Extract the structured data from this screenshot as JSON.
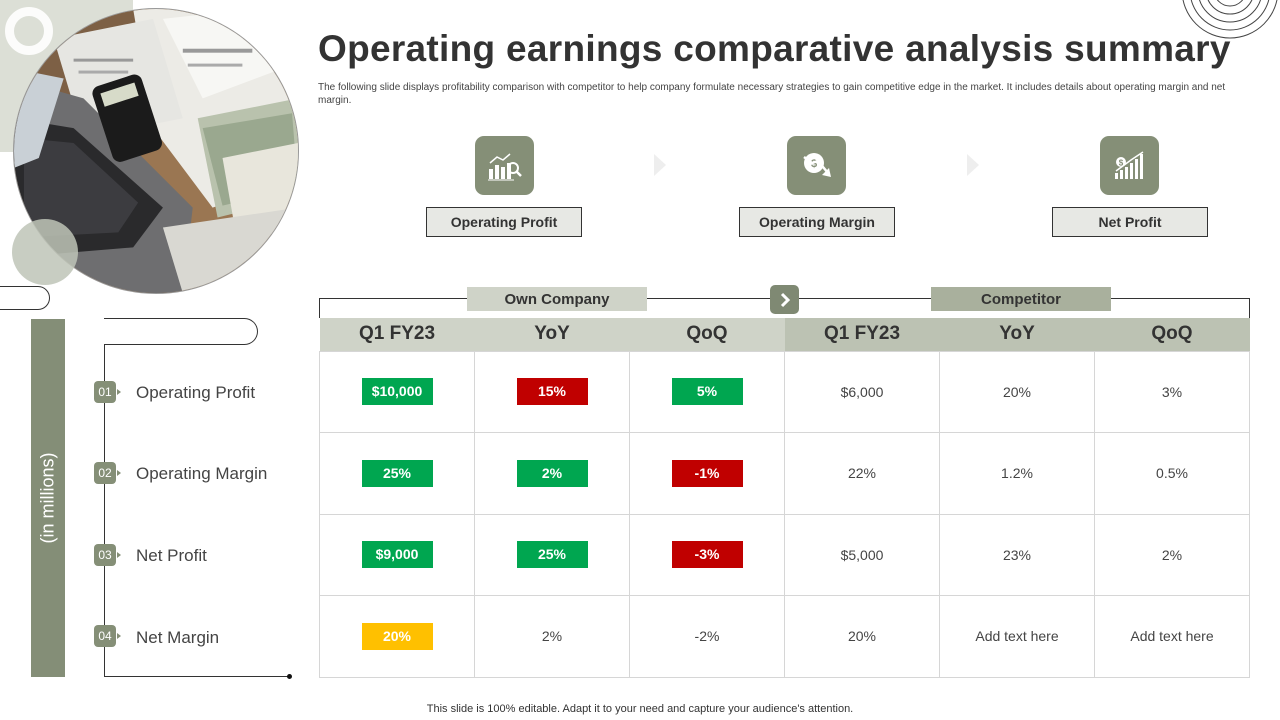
{
  "slide": {
    "title": "Operating earnings comparative analysis summary",
    "subtitle": "The following slide displays profitability comparison with competitor to help company formulate necessary strategies to gain competitive edge in the market. It includes details about operating margin and net margin.",
    "footer": "This slide is 100% editable.  Adapt it to your need and capture your audience's attention."
  },
  "categories": [
    {
      "label": "Operating Profit",
      "icon": "bar-chart-magnifier-icon"
    },
    {
      "label": "Operating Margin",
      "icon": "dollar-down-arrow-icon"
    },
    {
      "label": "Net Profit",
      "icon": "dollar-growth-bars-icon"
    }
  ],
  "side": {
    "unit_label": "(in millions)",
    "rows": [
      {
        "num": "01",
        "label": "Operating Profit"
      },
      {
        "num": "02",
        "label": "Operating Margin"
      },
      {
        "num": "03",
        "label": "Net Profit"
      },
      {
        "num": "04",
        "label": "Net Margin"
      }
    ]
  },
  "table": {
    "groups": {
      "own": "Own Company",
      "competitor": "Competitor"
    },
    "headers": [
      "Q1 FY23",
      "YoY",
      "QoQ",
      "Q1 FY23",
      "YoY",
      "QoQ"
    ],
    "rows": [
      [
        {
          "text": "$10,000",
          "color": "#00a650"
        },
        {
          "text": "15%",
          "color": "#c00000"
        },
        {
          "text": "5%",
          "color": "#00a650"
        },
        {
          "text": "$6,000"
        },
        {
          "text": "20%"
        },
        {
          "text": "3%"
        }
      ],
      [
        {
          "text": "25%",
          "color": "#00a650"
        },
        {
          "text": "2%",
          "color": "#00a650"
        },
        {
          "text": "-1%",
          "color": "#c00000"
        },
        {
          "text": "22%"
        },
        {
          "text": "1.2%"
        },
        {
          "text": "0.5%"
        }
      ],
      [
        {
          "text": "$9,000",
          "color": "#00a650"
        },
        {
          "text": "25%",
          "color": "#00a650"
        },
        {
          "text": "-3%",
          "color": "#c00000"
        },
        {
          "text": "$5,000"
        },
        {
          "text": "23%"
        },
        {
          "text": "2%"
        }
      ],
      [
        {
          "text": "20%",
          "color": "#ffc000"
        },
        {
          "text": "2%"
        },
        {
          "text": "-2%"
        },
        {
          "text": "20%"
        },
        {
          "text": "Add text here"
        },
        {
          "text": "Add text here"
        }
      ]
    ]
  },
  "colors": {
    "accent": "#858f77",
    "green": "#00a650",
    "red": "#c00000",
    "amber": "#ffc000"
  }
}
